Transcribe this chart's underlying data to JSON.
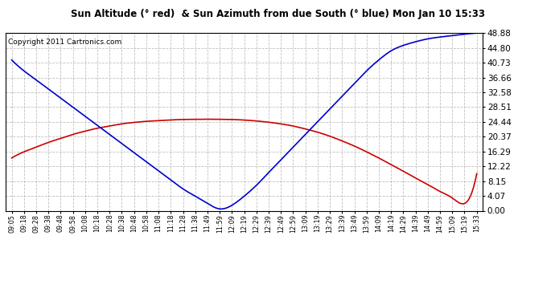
{
  "title": "Sun Altitude (° red)  & Sun Azimuth from due South (° blue) Mon Jan 10 15:33",
  "copyright": "Copyright 2011 Cartronics.com",
  "bg_color": "#ffffff",
  "plot_bg_color": "#ffffff",
  "grid_color": "#b0b0b0",
  "line_red_color": "#cc0000",
  "line_blue_color": "#0000cc",
  "y_ticks": [
    0.0,
    4.07,
    8.15,
    12.22,
    16.29,
    20.37,
    24.44,
    28.51,
    32.58,
    36.66,
    40.73,
    44.8,
    48.88
  ],
  "y_min": 0.0,
  "y_max": 48.88,
  "x_labels": [
    "09:05",
    "09:18",
    "09:28",
    "09:38",
    "09:48",
    "09:58",
    "10:08",
    "10:18",
    "10:28",
    "10:38",
    "10:48",
    "10:58",
    "11:08",
    "11:18",
    "11:28",
    "11:38",
    "11:49",
    "11:59",
    "12:09",
    "12:19",
    "12:29",
    "12:39",
    "12:49",
    "12:59",
    "13:09",
    "13:19",
    "13:29",
    "13:39",
    "13:49",
    "13:59",
    "14:09",
    "14:19",
    "14:29",
    "14:39",
    "14:49",
    "14:59",
    "15:09",
    "15:19",
    "15:33"
  ],
  "x_indices": [
    0,
    1,
    2,
    3,
    4,
    5,
    6,
    7,
    8,
    9,
    10,
    11,
    12,
    13,
    14,
    15,
    16,
    17,
    18,
    19,
    20,
    21,
    22,
    23,
    24,
    25,
    26,
    27,
    28,
    29,
    30,
    31,
    32,
    33,
    34,
    35,
    36,
    37,
    38
  ],
  "sun_altitude_y": [
    14.5,
    16.2,
    17.5,
    18.8,
    19.9,
    21.0,
    21.9,
    22.7,
    23.3,
    23.9,
    24.3,
    24.6,
    24.8,
    25.0,
    25.1,
    25.15,
    25.18,
    25.15,
    25.1,
    24.95,
    24.7,
    24.35,
    23.9,
    23.3,
    22.5,
    21.6,
    20.5,
    19.2,
    17.8,
    16.2,
    14.5,
    12.7,
    10.9,
    9.0,
    7.2,
    5.3,
    3.5,
    2.0,
    10.2
  ],
  "sun_azimuth_y": [
    41.5,
    38.5,
    36.0,
    33.5,
    31.0,
    28.5,
    26.0,
    23.5,
    21.0,
    18.5,
    16.0,
    13.5,
    11.0,
    8.5,
    6.0,
    4.0,
    2.0,
    0.5,
    1.5,
    4.0,
    7.0,
    10.5,
    14.0,
    17.5,
    21.0,
    24.5,
    28.0,
    31.5,
    35.0,
    38.5,
    41.5,
    44.0,
    45.5,
    46.5,
    47.3,
    47.8,
    48.2,
    48.6,
    48.88
  ]
}
